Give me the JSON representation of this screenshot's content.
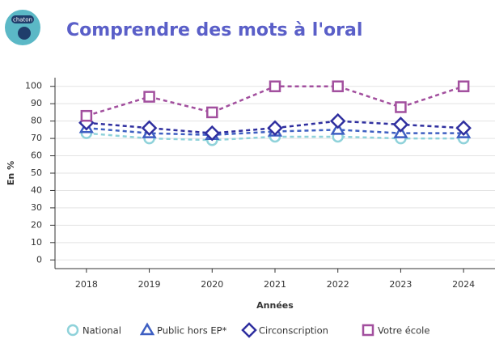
{
  "chart_data": {
    "type": "line",
    "badge": "chaton",
    "title": "Comprendre des mots à l'oral",
    "ylabel": "En %",
    "xlabel": "Années",
    "categories": [
      "2018",
      "2019",
      "2020",
      "2021",
      "2022",
      "2023",
      "2024"
    ],
    "ylim": [
      -5,
      105
    ],
    "yticks": [
      0,
      10,
      20,
      30,
      40,
      50,
      60,
      70,
      80,
      90,
      100
    ],
    "grid": true,
    "legend": "bottom",
    "series": [
      {
        "name": "National",
        "color": "#8fd2da",
        "marker": "circle",
        "values": [
          73,
          70,
          69,
          71,
          71,
          70,
          70
        ]
      },
      {
        "name": "Public hors EP*",
        "color": "#3e5fc2",
        "marker": "triangle",
        "values": [
          76,
          73,
          72,
          74,
          75,
          73,
          73
        ]
      },
      {
        "name": "Circonscription",
        "color": "#2f2f9f",
        "marker": "diamond",
        "values": [
          79,
          76,
          73,
          76,
          80,
          78,
          76
        ]
      },
      {
        "name": "Votre école",
        "color": "#a24f9e",
        "marker": "square",
        "values": [
          83,
          94,
          85,
          100,
          100,
          88,
          100
        ]
      }
    ]
  }
}
